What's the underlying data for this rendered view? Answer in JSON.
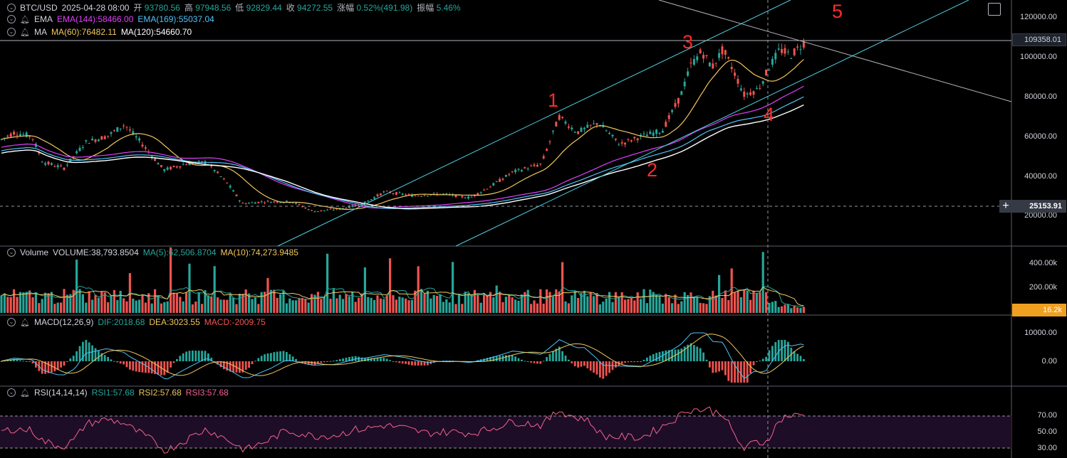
{
  "header": {
    "symbol": "BTC/USD",
    "datetime": "2025-04-28 08:00",
    "open_label": "开",
    "open": "93780.56",
    "high_label": "高",
    "high": "97948.56",
    "low_label": "低",
    "low": "92829.44",
    "close_label": "收",
    "close": "94272.55",
    "change_label": "涨幅",
    "change": "0.52%(491.98)",
    "amplitude_label": "振幅",
    "amplitude": "5.46%"
  },
  "indicators": {
    "ema": {
      "name": "EMA",
      "ema144": "EMA(144):58466.00",
      "ema169": "EMA(169):55037.04"
    },
    "ma": {
      "name": "MA",
      "ma60": "MA(60):76482.11",
      "ma120": "MA(120):54660.70"
    },
    "volume": {
      "name": "Volume",
      "volume": "VOLUME:38,793.8504",
      "ma5": "MA(5):62,506.8704",
      "ma10": "MA(10):74,273.9485"
    },
    "macd": {
      "name": "MACD(12,26,9)",
      "dif": "DIF:2018.68",
      "dea": "DEA:3023.55",
      "macd": "MACD:-2009.75"
    },
    "rsi": {
      "name": "RSI(14,14,14)",
      "rsi1": "RSI1:57.68",
      "rsi2": "RSI2:57.68",
      "rsi3": "RSI3:57.68"
    }
  },
  "price_axis": {
    "ticks": [
      "120000.00",
      "100000.00",
      "80000.00",
      "60000.00",
      "40000.00",
      "20000.00"
    ],
    "last_price_tag": "109358.01",
    "crosshair_price_tag": "25153.91",
    "crosshair_plus": "+"
  },
  "volume_axis": {
    "ticks": [
      "400.00k",
      "200.00k"
    ],
    "last_tag": "16.2k"
  },
  "macd_axis": {
    "ticks": [
      "10000.00",
      "0.00"
    ]
  },
  "rsi_axis": {
    "ticks": [
      "70.00",
      "50.00",
      "30.00"
    ]
  },
  "wave_labels": [
    "1",
    "2",
    "3",
    "4",
    "5"
  ],
  "colors": {
    "up": "#26a69a",
    "down": "#ef5350",
    "ema144": "#e040fb",
    "ema169": "#4fc3f7",
    "ma60": "#f0c75e",
    "ma120": "#ffffff",
    "channel": "#4dd0e1",
    "wave_label": "#ff2b2b",
    "rsi": "#f06292",
    "volume_tag": "#f0a020"
  }
}
